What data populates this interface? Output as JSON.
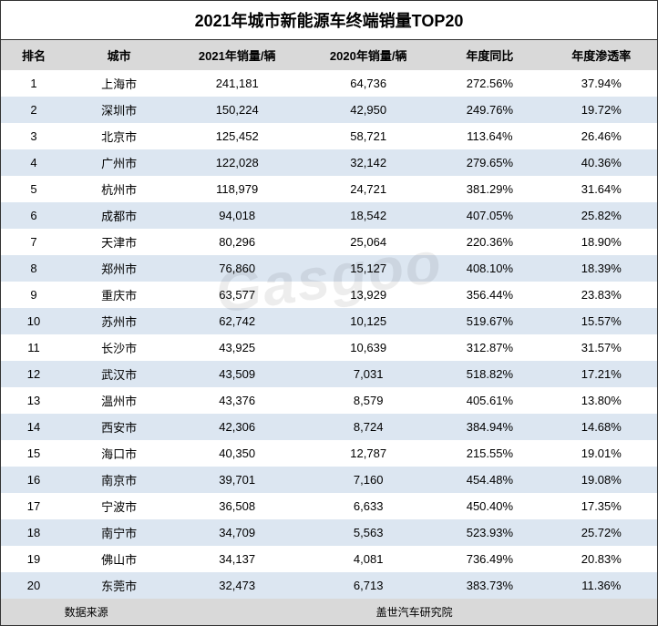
{
  "title": "2021年城市新能源车终端销量TOP20",
  "watermark": "Gasgoo",
  "columns": [
    "排名",
    "城市",
    "2021年销量/辆",
    "2020年销量/辆",
    "年度同比",
    "年度渗透率"
  ],
  "column_widths_pct": [
    10,
    16,
    20,
    20,
    17,
    17
  ],
  "header_bg": "#d9d9d9",
  "row_odd_bg": "#ffffff",
  "row_even_bg": "#dce6f1",
  "text_color": "#000000",
  "title_fontsize": 18,
  "header_fontsize": 13,
  "cell_fontsize": 13,
  "footer_fontsize": 12,
  "rows": [
    {
      "rank": "1",
      "city": "上海市",
      "s2021": "241,181",
      "s2020": "64,736",
      "yoy": "272.56%",
      "pen": "37.94%"
    },
    {
      "rank": "2",
      "city": "深圳市",
      "s2021": "150,224",
      "s2020": "42,950",
      "yoy": "249.76%",
      "pen": "19.72%"
    },
    {
      "rank": "3",
      "city": "北京市",
      "s2021": "125,452",
      "s2020": "58,721",
      "yoy": "113.64%",
      "pen": "26.46%"
    },
    {
      "rank": "4",
      "city": "广州市",
      "s2021": "122,028",
      "s2020": "32,142",
      "yoy": "279.65%",
      "pen": "40.36%"
    },
    {
      "rank": "5",
      "city": "杭州市",
      "s2021": "118,979",
      "s2020": "24,721",
      "yoy": "381.29%",
      "pen": "31.64%"
    },
    {
      "rank": "6",
      "city": "成都市",
      "s2021": "94,018",
      "s2020": "18,542",
      "yoy": "407.05%",
      "pen": "25.82%"
    },
    {
      "rank": "7",
      "city": "天津市",
      "s2021": "80,296",
      "s2020": "25,064",
      "yoy": "220.36%",
      "pen": "18.90%"
    },
    {
      "rank": "8",
      "city": "郑州市",
      "s2021": "76,860",
      "s2020": "15,127",
      "yoy": "408.10%",
      "pen": "18.39%"
    },
    {
      "rank": "9",
      "city": "重庆市",
      "s2021": "63,577",
      "s2020": "13,929",
      "yoy": "356.44%",
      "pen": "23.83%"
    },
    {
      "rank": "10",
      "city": "苏州市",
      "s2021": "62,742",
      "s2020": "10,125",
      "yoy": "519.67%",
      "pen": "15.57%"
    },
    {
      "rank": "11",
      "city": "长沙市",
      "s2021": "43,925",
      "s2020": "10,639",
      "yoy": "312.87%",
      "pen": "31.57%"
    },
    {
      "rank": "12",
      "city": "武汉市",
      "s2021": "43,509",
      "s2020": "7,031",
      "yoy": "518.82%",
      "pen": "17.21%"
    },
    {
      "rank": "13",
      "city": "温州市",
      "s2021": "43,376",
      "s2020": "8,579",
      "yoy": "405.61%",
      "pen": "13.80%"
    },
    {
      "rank": "14",
      "city": "西安市",
      "s2021": "42,306",
      "s2020": "8,724",
      "yoy": "384.94%",
      "pen": "14.68%"
    },
    {
      "rank": "15",
      "city": "海口市",
      "s2021": "40,350",
      "s2020": "12,787",
      "yoy": "215.55%",
      "pen": "19.01%"
    },
    {
      "rank": "16",
      "city": "南京市",
      "s2021": "39,701",
      "s2020": "7,160",
      "yoy": "454.48%",
      "pen": "19.08%"
    },
    {
      "rank": "17",
      "city": "宁波市",
      "s2021": "36,508",
      "s2020": "6,633",
      "yoy": "450.40%",
      "pen": "17.35%"
    },
    {
      "rank": "18",
      "city": "南宁市",
      "s2021": "34,709",
      "s2020": "5,563",
      "yoy": "523.93%",
      "pen": "25.72%"
    },
    {
      "rank": "19",
      "city": "佛山市",
      "s2021": "34,137",
      "s2020": "4,081",
      "yoy": "736.49%",
      "pen": "20.83%"
    },
    {
      "rank": "20",
      "city": "东莞市",
      "s2021": "32,473",
      "s2020": "6,713",
      "yoy": "383.73%",
      "pen": "11.36%"
    }
  ],
  "footer": {
    "label": "数据来源",
    "source": "盖世汽车研究院"
  }
}
